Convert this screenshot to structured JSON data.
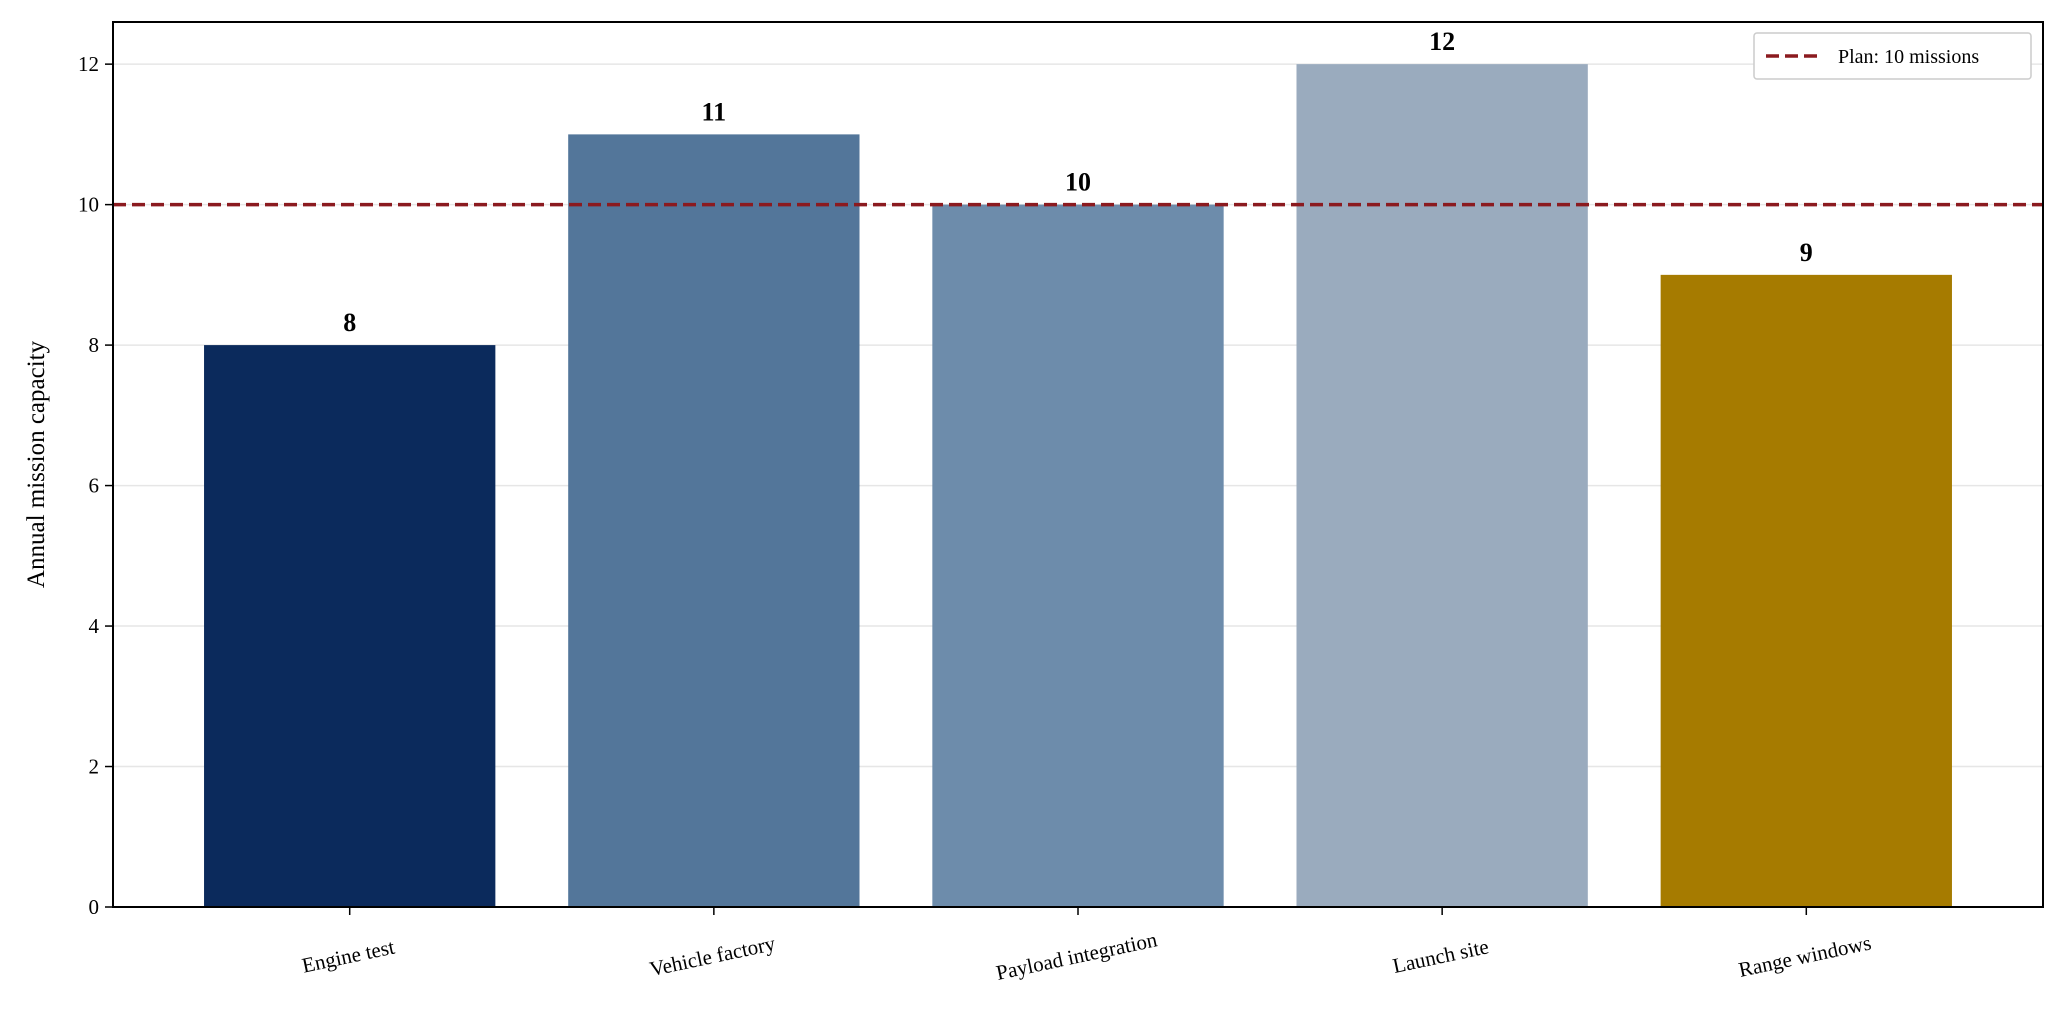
{
  "chart_data": {
    "type": "bar",
    "title": "",
    "xlabel": "",
    "ylabel": "Annual mission capacity",
    "categories": [
      "Engine test",
      "Vehicle factory",
      "Payload integration",
      "Launch site",
      "Range windows"
    ],
    "values": [
      8,
      11,
      10,
      12,
      9
    ],
    "data_labels": [
      "8",
      "11",
      "10",
      "12",
      "9"
    ],
    "bar_colors": [
      "#0b2a5c",
      "#53769a",
      "#6d8cab",
      "#9aabbe",
      "#a67b00"
    ],
    "ylim": [
      0,
      12.6
    ],
    "yticks": [
      0,
      2,
      4,
      6,
      8,
      10,
      12
    ],
    "ytick_labels": [
      "0",
      "2",
      "4",
      "6",
      "8",
      "10",
      "12"
    ],
    "grid": "horizontal",
    "reference_line": {
      "value": 10,
      "label": "Plan: 10 missions",
      "color": "#8b1a1f",
      "style": "dashed"
    },
    "legend": {
      "placement": "top-right",
      "entries": [
        "Plan: 10 missions"
      ]
    }
  }
}
